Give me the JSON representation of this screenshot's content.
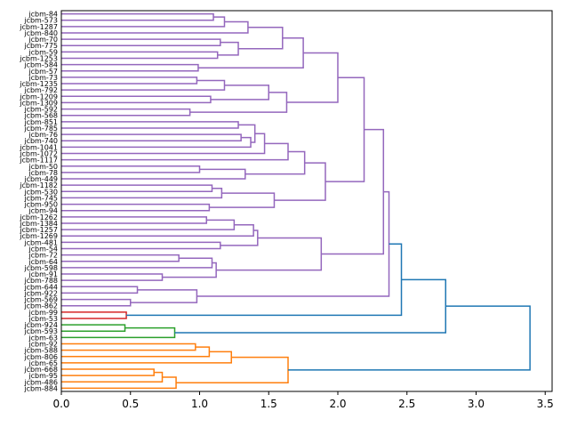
{
  "chart_data": {
    "type": "dendrogram",
    "orientation": "right",
    "xlim": [
      0,
      3.55
    ],
    "xticks": [
      "0.0",
      "0.5",
      "1.0",
      "1.5",
      "2.0",
      "2.5",
      "3.0",
      "3.5"
    ],
    "xtick_values": [
      0,
      0.5,
      1.0,
      1.5,
      2.0,
      2.5,
      3.0,
      3.5
    ],
    "colors": {
      "purple": "#9467bd",
      "red": "#d62728",
      "green": "#2ca02c",
      "orange": "#ff7f0e",
      "blue": "#1f77b4"
    },
    "labels": [
      "jcbm-84",
      "jcbm-573",
      "jcbm-1287",
      "jcbm-840",
      "jcbm-70",
      "jcbm-775",
      "jcbm-59",
      "jcbm-1253",
      "jcbm-584",
      "jcbm-57",
      "jcbm-73",
      "jcbm-1235",
      "jcbm-792",
      "jcbm-1209",
      "jcbm-1309",
      "jcbm-592",
      "jcbm-568",
      "jcbm-851",
      "jcbm-785",
      "jcbm-76",
      "jcbm-740",
      "jcbm-1041",
      "jcbm-1072",
      "jcbm-1117",
      "jcbm-50",
      "jcbm-78",
      "jcbm-449",
      "jcbm-1182",
      "jcbm-530",
      "jcbm-745",
      "jcbm-950",
      "jcbm-94",
      "jcbm-1262",
      "jcbm-1384",
      "jcbm-1257",
      "jcbm-1269",
      "jcbm-481",
      "jcbm-54",
      "jcbm-72",
      "jcbm-64",
      "jcbm-598",
      "jcbm-91",
      "jcbm-788",
      "jcbm-644",
      "jcbm-922",
      "jcbm-569",
      "jcbm-862",
      "jcbm-99",
      "jcbm-53",
      "jcbm-924",
      "jcbm-593",
      "jcbm-63",
      "jcbm-92",
      "jcbm-588",
      "jcbm-806",
      "jcbm-65",
      "jcbm-668",
      "jcbm-95",
      "jcbm-486",
      "jcbm-884"
    ],
    "tree": {
      "h": 3.39,
      "c": "blue",
      "k": [
        {
          "h": 2.78,
          "c": "blue",
          "k": [
            {
              "h": 2.46,
              "c": "blue",
              "k": [
                {
                  "h": 2.37,
                  "c": "purple",
                  "k": [
                    {
                      "h": 2.33,
                      "c": "purple",
                      "k": [
                        {
                          "h": 2.19,
                          "c": "purple",
                          "k": [
                            {
                              "h": 2.0,
                              "c": "purple",
                              "k": [
                                {
                                  "h": 1.75,
                                  "c": "purple",
                                  "k": [
                                    {
                                      "h": 1.6,
                                      "c": "purple",
                                      "k": [
                                        {
                                          "h": 1.35,
                                          "c": "purple",
                                          "k": [
                                            {
                                              "h": 1.18,
                                              "c": "purple",
                                              "k": [
                                                {
                                                  "h": 1.1,
                                                  "c": "purple",
                                                  "k": [
                                                    0,
                                                    1
                                                  ]
                                                },
                                                2
                                              ]
                                            },
                                            3
                                          ]
                                        },
                                        {
                                          "h": 1.28,
                                          "c": "purple",
                                          "k": [
                                            {
                                              "h": 1.15,
                                              "c": "purple",
                                              "k": [
                                                4,
                                                5
                                              ]
                                            },
                                            {
                                              "h": 1.13,
                                              "c": "purple",
                                              "k": [
                                                6,
                                                7
                                              ]
                                            }
                                          ]
                                        }
                                      ]
                                    },
                                    {
                                      "h": 0.99,
                                      "c": "purple",
                                      "k": [
                                        8,
                                        9
                                      ]
                                    }
                                  ]
                                },
                                {
                                  "h": 1.63,
                                  "c": "purple",
                                  "k": [
                                    {
                                      "h": 1.5,
                                      "c": "purple",
                                      "k": [
                                        {
                                          "h": 1.18,
                                          "c": "purple",
                                          "k": [
                                            {
                                              "h": 0.98,
                                              "c": "purple",
                                              "k": [
                                                10,
                                                11
                                              ]
                                            },
                                            12
                                          ]
                                        },
                                        {
                                          "h": 1.08,
                                          "c": "purple",
                                          "k": [
                                            13,
                                            14
                                          ]
                                        }
                                      ]
                                    },
                                    {
                                      "h": 0.93,
                                      "c": "purple",
                                      "k": [
                                        15,
                                        16
                                      ]
                                    }
                                  ]
                                }
                              ]
                            },
                            {
                              "h": 1.91,
                              "c": "purple",
                              "k": [
                                {
                                  "h": 1.76,
                                  "c": "purple",
                                  "k": [
                                    {
                                      "h": 1.64,
                                      "c": "purple",
                                      "k": [
                                        {
                                          "h": 1.47,
                                          "c": "purple",
                                          "k": [
                                            {
                                              "h": 1.4,
                                              "c": "purple",
                                              "k": [
                                                {
                                                  "h": 1.28,
                                                  "c": "purple",
                                                  "k": [
                                                    17,
                                                    18
                                                  ]
                                                },
                                                {
                                                  "h": 1.37,
                                                  "c": "purple",
                                                  "k": [
                                                    {
                                                      "h": 1.3,
                                                      "c": "purple",
                                                      "k": [
                                                        19,
                                                        20
                                                      ]
                                                    },
                                                    21
                                                  ]
                                                }
                                              ]
                                            },
                                            22
                                          ]
                                        },
                                        23
                                      ]
                                    },
                                    {
                                      "h": 1.33,
                                      "c": "purple",
                                      "k": [
                                        {
                                          "h": 1.0,
                                          "c": "purple",
                                          "k": [
                                            24,
                                            25
                                          ]
                                        },
                                        26
                                      ]
                                    }
                                  ]
                                },
                                {
                                  "h": 1.54,
                                  "c": "purple",
                                  "k": [
                                    {
                                      "h": 1.16,
                                      "c": "purple",
                                      "k": [
                                        {
                                          "h": 1.09,
                                          "c": "purple",
                                          "k": [
                                            27,
                                            28
                                          ]
                                        },
                                        29
                                      ]
                                    },
                                    {
                                      "h": 1.07,
                                      "c": "purple",
                                      "k": [
                                        30,
                                        31
                                      ]
                                    }
                                  ]
                                }
                              ]
                            }
                          ]
                        },
                        {
                          "h": 1.88,
                          "c": "purple",
                          "k": [
                            {
                              "h": 1.42,
                              "c": "purple",
                              "k": [
                                {
                                  "h": 1.39,
                                  "c": "purple",
                                  "k": [
                                    {
                                      "h": 1.25,
                                      "c": "purple",
                                      "k": [
                                        {
                                          "h": 1.05,
                                          "c": "purple",
                                          "k": [
                                            32,
                                            33
                                          ]
                                        },
                                        34
                                      ]
                                    },
                                    35
                                  ]
                                },
                                {
                                  "h": 1.15,
                                  "c": "purple",
                                  "k": [
                                    36,
                                    37
                                  ]
                                }
                              ]
                            },
                            {
                              "h": 1.12,
                              "c": "purple",
                              "k": [
                                {
                                  "h": 1.09,
                                  "c": "purple",
                                  "k": [
                                    {
                                      "h": 0.85,
                                      "c": "purple",
                                      "k": [
                                        38,
                                        39
                                      ]
                                    },
                                    40
                                  ]
                                },
                                {
                                  "h": 0.73,
                                  "c": "purple",
                                  "k": [
                                    41,
                                    42
                                  ]
                                }
                              ]
                            }
                          ]
                        }
                      ]
                    },
                    {
                      "h": 0.98,
                      "c": "purple",
                      "k": [
                        {
                          "h": 0.55,
                          "c": "purple",
                          "k": [
                            43,
                            44
                          ]
                        },
                        {
                          "h": 0.5,
                          "c": "purple",
                          "k": [
                            45,
                            46
                          ]
                        }
                      ]
                    }
                  ]
                },
                {
                  "h": 0.47,
                  "c": "red",
                  "k": [
                    47,
                    48
                  ]
                }
              ]
            },
            {
              "h": 0.82,
              "c": "green",
              "k": [
                {
                  "h": 0.46,
                  "c": "green",
                  "k": [
                    49,
                    50
                  ]
                },
                51
              ]
            }
          ]
        },
        {
          "h": 1.64,
          "c": "orange",
          "k": [
            {
              "h": 1.23,
              "c": "orange",
              "k": [
                {
                  "h": 1.07,
                  "c": "orange",
                  "k": [
                    {
                      "h": 0.97,
                      "c": "orange",
                      "k": [
                        52,
                        53
                      ]
                    },
                    54
                  ]
                },
                55
              ]
            },
            {
              "h": 0.83,
              "c": "orange",
              "k": [
                {
                  "h": 0.73,
                  "c": "orange",
                  "k": [
                    {
                      "h": 0.67,
                      "c": "orange",
                      "k": [
                        56,
                        57
                      ]
                    },
                    58
                  ]
                },
                59
              ]
            }
          ]
        }
      ]
    }
  }
}
